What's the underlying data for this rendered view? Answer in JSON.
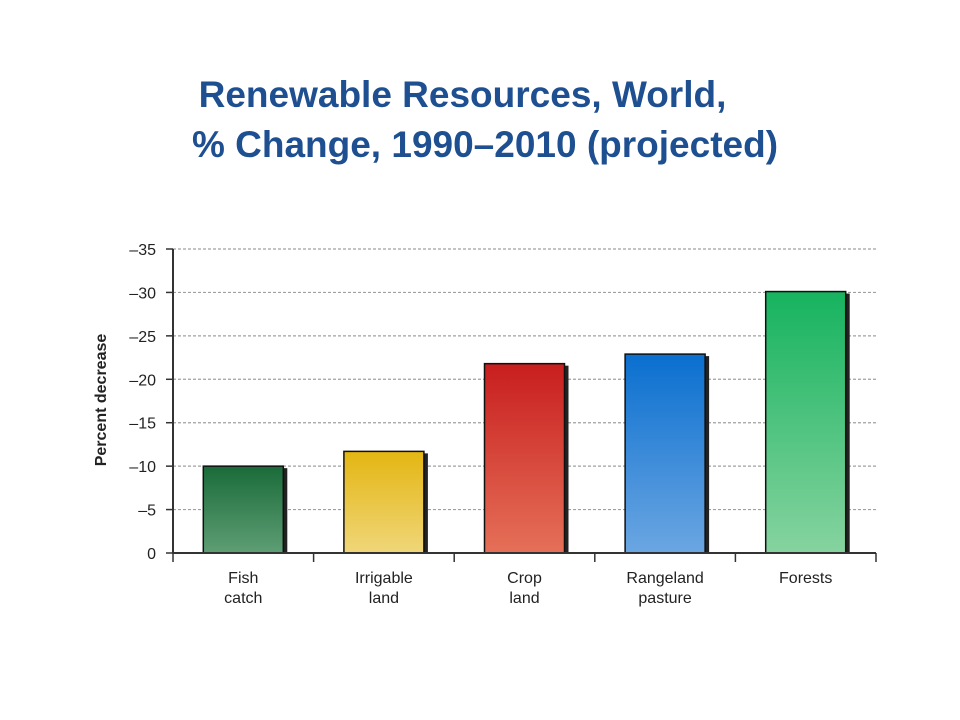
{
  "title": {
    "line1": "Renewable Resources, World,",
    "line2": "% Change, 1990–2010 (projected)"
  },
  "chart_data": {
    "type": "bar",
    "title": "Renewable Resources, World, % Change, 1990–2010 (projected)",
    "ylabel": "Percent decrease",
    "xlabel": "",
    "ylim": [
      0,
      35
    ],
    "yticks": [
      0,
      5,
      10,
      15,
      20,
      25,
      30,
      35
    ],
    "ytick_labels": [
      "0",
      "–5",
      "–10",
      "–15",
      "–20",
      "–25",
      "–30",
      "–35"
    ],
    "grid": "horizontal dashed",
    "categories": [
      [
        "Fish",
        "catch"
      ],
      [
        "Irrigable",
        "land"
      ],
      [
        "Crop",
        "land"
      ],
      [
        "Rangeland",
        "pasture"
      ],
      [
        "Forests"
      ]
    ],
    "values": [
      10,
      11.7,
      21.8,
      22.9,
      30.1
    ],
    "colors": [
      [
        "#1a6b3a",
        "#5e9e74"
      ],
      [
        "#e3b612",
        "#f0d67a"
      ],
      [
        "#c81e1e",
        "#e57058"
      ],
      [
        "#0a6fcf",
        "#6ba6e2"
      ],
      [
        "#16b35f",
        "#86d39f"
      ]
    ]
  }
}
